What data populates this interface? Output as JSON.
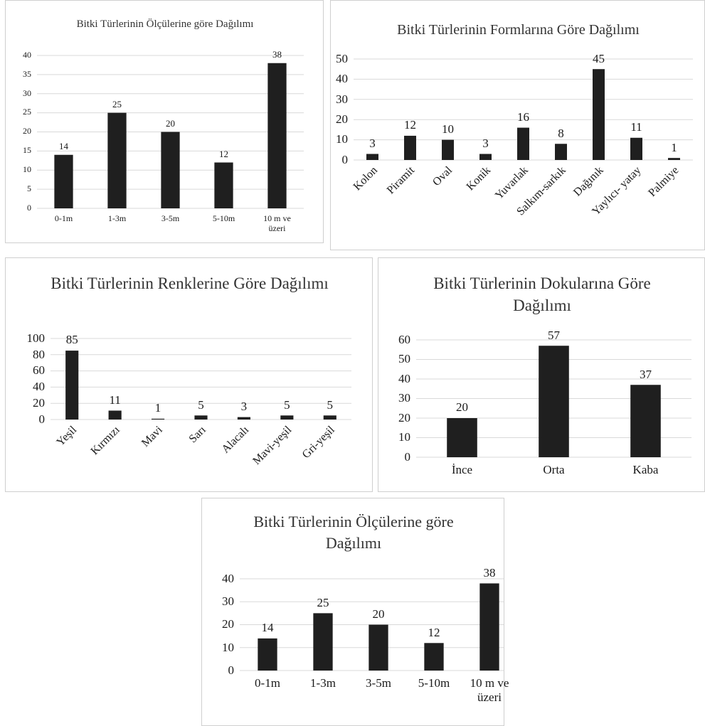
{
  "chart_data": [
    {
      "type": "bar",
      "title": "Bitki Türlerinin Ölçülerine göre Dağılımı",
      "categories": [
        "0-1m",
        "1-3m",
        "3-5m",
        "5-10m",
        "10 m ve üzeri"
      ],
      "values": [
        14,
        25,
        20,
        12,
        38
      ],
      "color": "#1f1f1f",
      "ylim": [
        0,
        40
      ],
      "yticks": [
        0,
        5,
        10,
        15,
        20,
        25,
        30,
        35,
        40
      ],
      "grid": true
    },
    {
      "type": "bar",
      "title": "Bitki Türlerinin Formlarına Göre Dağılımı",
      "categories": [
        "Kolon",
        "Piramit",
        "Oval",
        "Konik",
        "Yuvarlak",
        "Salkım-sarkık",
        "Dağınık",
        "Yaylıcı- yatay",
        "Palmiye"
      ],
      "values": [
        3,
        12,
        10,
        3,
        16,
        8,
        45,
        11,
        1
      ],
      "color": "#1f1f1f",
      "ylim": [
        0,
        50
      ],
      "yticks": [
        0,
        10,
        20,
        30,
        40,
        50
      ],
      "grid": true
    },
    {
      "type": "bar",
      "title": "Bitki Türlerinin Renklerine Göre Dağılımı",
      "categories": [
        "Yeşil",
        "Kırmızı",
        "Mavi",
        "Sarı",
        "Alacalı",
        "Mavi-yeşil",
        "Gri-yeşil"
      ],
      "values": [
        85,
        11,
        1,
        5,
        3,
        5,
        5
      ],
      "color": "#1f1f1f",
      "ylim": [
        0,
        100
      ],
      "yticks": [
        0,
        20,
        40,
        60,
        80,
        100
      ],
      "grid": true
    },
    {
      "type": "bar",
      "title": "Bitki Türlerinin Dokularına Göre Dağılımı",
      "categories": [
        "İnce",
        "Orta",
        "Kaba"
      ],
      "values": [
        20,
        57,
        37
      ],
      "color": "#1f1f1f",
      "ylim": [
        0,
        60
      ],
      "yticks": [
        0,
        10,
        20,
        30,
        40,
        50,
        60
      ],
      "grid": true
    },
    {
      "type": "bar",
      "title": "Bitki Türlerinin Ölçülerine göre Dağılımı",
      "categories": [
        "0-1m",
        "1-3m",
        "3-5m",
        "5-10m",
        "10 m ve üzeri"
      ],
      "values": [
        14,
        25,
        20,
        12,
        38
      ],
      "color": "#1f1f1f",
      "ylim": [
        0,
        40
      ],
      "yticks": [
        0,
        10,
        20,
        30,
        40
      ],
      "grid": true
    }
  ]
}
